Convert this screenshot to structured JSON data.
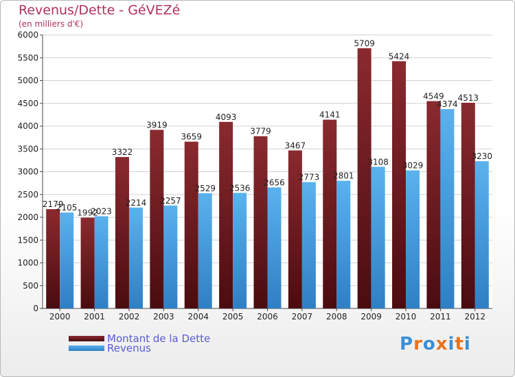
{
  "header": {
    "title": "Revenus/Dette - GéVEZé",
    "subtitle": "(en milliers d'€)"
  },
  "chart_data": {
    "type": "bar",
    "categories": [
      "2000",
      "2001",
      "2002",
      "2003",
      "2004",
      "2005",
      "2006",
      "2007",
      "2008",
      "2009",
      "2010",
      "2011",
      "2012"
    ],
    "series": [
      {
        "name": "Montant de la Dette",
        "values": [
          2179,
          1992,
          3322,
          3919,
          3659,
          4093,
          3779,
          3467,
          4141,
          5709,
          5424,
          4549,
          4513
        ],
        "color": "#7a1f24"
      },
      {
        "name": "Revenus",
        "values": [
          2105,
          2023,
          2214,
          2257,
          2529,
          2536,
          2656,
          2773,
          2801,
          3108,
          3029,
          4374,
          3230
        ],
        "color": "#4ea6e6"
      }
    ],
    "ylim": [
      0,
      6000
    ],
    "yticks": [
      0,
      500,
      1000,
      1500,
      2000,
      2500,
      3000,
      3500,
      4000,
      4500,
      5000,
      5500,
      6000
    ],
    "grid": true,
    "legend_position": "bottom-left"
  },
  "logo": {
    "text": "Proxiti",
    "colors": [
      "#3a8fd6",
      "#e8731a",
      "#3a8fd6",
      "#e8731a",
      "#3a8fd6",
      "#e8731a",
      "#3a8fd6"
    ]
  }
}
